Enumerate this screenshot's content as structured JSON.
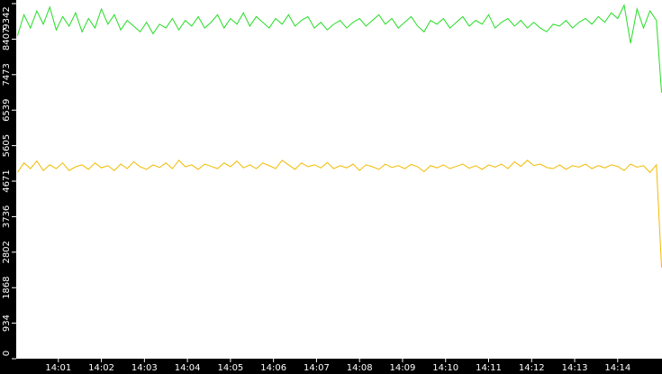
{
  "chart_data": {
    "type": "line",
    "x": [
      0.05,
      0.2,
      0.35,
      0.5,
      0.65,
      0.8,
      0.95,
      1.1,
      1.25,
      1.4,
      1.55,
      1.7,
      1.85,
      2,
      2.15,
      2.3,
      2.45,
      2.6,
      2.75,
      2.9,
      3.05,
      3.2,
      3.35,
      3.5,
      3.65,
      3.8,
      3.95,
      4.1,
      4.25,
      4.4,
      4.55,
      4.7,
      4.85,
      5,
      5.15,
      5.3,
      5.45,
      5.6,
      5.75,
      5.9,
      6.05,
      6.2,
      6.35,
      6.5,
      6.65,
      6.8,
      6.95,
      7.1,
      7.25,
      7.4,
      7.55,
      7.7,
      7.85,
      8,
      8.15,
      8.3,
      8.45,
      8.6,
      8.75,
      8.9,
      9.05,
      9.2,
      9.35,
      9.5,
      9.65,
      9.8,
      9.95,
      10.1,
      10.25,
      10.4,
      10.55,
      10.7,
      10.85,
      11,
      11.15,
      11.3,
      11.45,
      11.6,
      11.75,
      11.9,
      12.05,
      12.2,
      12.35,
      12.5,
      12.65,
      12.8,
      12.95,
      13.1,
      13.25,
      13.4,
      13.55,
      13.7,
      13.85,
      14,
      14.15,
      14.3,
      14.45,
      14.6,
      14.75,
      14.9,
      15.02
    ],
    "series": [
      {
        "color": "#22dd22",
        "values": [
          8500,
          9050,
          8700,
          9150,
          8800,
          9250,
          8650,
          9000,
          8750,
          9100,
          8600,
          8950,
          8700,
          9200,
          8800,
          9050,
          8650,
          8900,
          8750,
          8600,
          8850,
          8550,
          8800,
          8700,
          8950,
          8650,
          8900,
          8750,
          9000,
          8700,
          8850,
          9050,
          8700,
          8950,
          8800,
          9100,
          8750,
          9000,
          8850,
          8700,
          8950,
          8800,
          9050,
          8750,
          8900,
          9000,
          8700,
          8850,
          8650,
          8800,
          8900,
          8700,
          8850,
          8950,
          8750,
          8900,
          9050,
          8800,
          8950,
          8700,
          8850,
          9000,
          8750,
          8600,
          8900,
          8800,
          8950,
          8700,
          8850,
          9000,
          8750,
          8900,
          8800,
          9050,
          8700,
          8850,
          8950,
          8750,
          8900,
          8700,
          8850,
          8700,
          8600,
          8800,
          8750,
          8900,
          8700,
          8850,
          8950,
          8800,
          9000,
          8850,
          9100,
          8950,
          9300,
          8300,
          9200,
          8700,
          9150,
          8900,
          7000
        ]
      },
      {
        "color": "#f0bb00",
        "values": [
          4900,
          5150,
          5000,
          5200,
          4950,
          5100,
          5000,
          5150,
          4950,
          5050,
          5100,
          4980,
          5150,
          5020,
          5080,
          4950,
          5120,
          5000,
          5180,
          5050,
          4980,
          5100,
          5030,
          5150,
          5000,
          5220,
          5050,
          5100,
          4980,
          5120,
          5060,
          5000,
          5150,
          5050,
          5200,
          5020,
          5100,
          5000,
          5150,
          5080,
          5000,
          5220,
          5100,
          4980,
          5150,
          5050,
          5100,
          5020,
          5160,
          5000,
          5080,
          5020,
          5120,
          4950,
          5100,
          5050,
          4980,
          5120,
          5030,
          5080,
          5000,
          5110,
          5050,
          4920,
          5080,
          5020,
          5100,
          5000,
          5060,
          5120,
          5010,
          5080,
          4980,
          5100,
          5040,
          5120,
          5000,
          5180,
          5060,
          5220,
          5080,
          5120,
          5030,
          5000,
          5100,
          4980,
          5080,
          5040,
          5120,
          5000,
          5080,
          5020,
          5100,
          5060,
          4950,
          5120,
          5040,
          5080,
          4900,
          5100,
          2400
        ]
      }
    ],
    "xlim": [
      0.02,
      15.03
    ],
    "xticks": [
      {
        "value": 1,
        "label": "14:01"
      },
      {
        "value": 2,
        "label": "14:02"
      },
      {
        "value": 3,
        "label": "14:03"
      },
      {
        "value": 4,
        "label": "14:04"
      },
      {
        "value": 5,
        "label": "14:05"
      },
      {
        "value": 6,
        "label": "14:06"
      },
      {
        "value": 7,
        "label": "14:07"
      },
      {
        "value": 8,
        "label": "14:08"
      },
      {
        "value": 9,
        "label": "14:09"
      },
      {
        "value": 10,
        "label": "14:10"
      },
      {
        "value": 11,
        "label": "14:11"
      },
      {
        "value": 12,
        "label": "14:12"
      },
      {
        "value": 13,
        "label": "14:13"
      },
      {
        "value": 14,
        "label": "14:14"
      }
    ],
    "ylim": [
      0,
      9342
    ],
    "yticks": [
      0,
      934,
      1868,
      2802,
      3736,
      4671,
      5605,
      6539,
      7473,
      8407,
      9342
    ]
  }
}
